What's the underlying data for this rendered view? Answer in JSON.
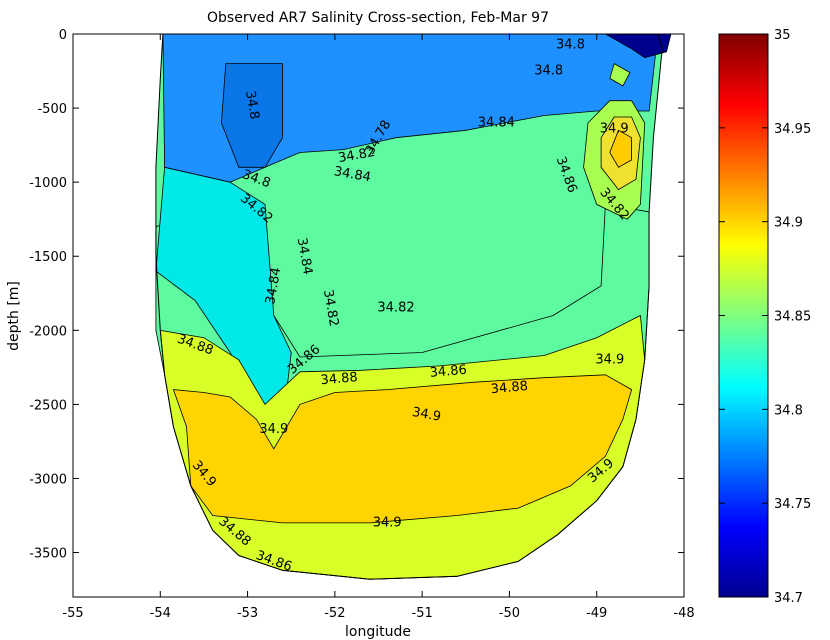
{
  "chart_data": {
    "type": "heatmap",
    "title": "Observed AR7 Salinity Cross-section, Feb-Mar 97",
    "xlabel": "longitude",
    "ylabel": "depth [m]",
    "xlim": [
      -55,
      -48
    ],
    "ylim": [
      -3800,
      0
    ],
    "x_ticks": [
      "-55",
      "-54",
      "-53",
      "-52",
      "-51",
      "-50",
      "-49",
      "-48"
    ],
    "x_tick_values": [
      -55,
      -54,
      -53,
      -52,
      -51,
      -50,
      -49,
      -48
    ],
    "y_ticks": [
      "0",
      "-500",
      "-1000",
      "-1500",
      "-2000",
      "-2500",
      "-3000",
      "-3500"
    ],
    "y_tick_values": [
      0,
      -500,
      -1000,
      -1500,
      -2000,
      -2500,
      -3000,
      -3500
    ],
    "colorbar": {
      "range": [
        34.7,
        35
      ],
      "ticks": [
        "35",
        "34.95",
        "34.9",
        "34.85",
        "34.8",
        "34.75",
        "34.7"
      ],
      "tick_values": [
        35,
        34.95,
        34.9,
        34.85,
        34.8,
        34.75,
        34.7
      ],
      "colormap": "jet"
    },
    "grid": false,
    "section_outline": [
      [
        -53.97,
        0
      ],
      [
        -54.0,
        -300
      ],
      [
        -54.05,
        -900
      ],
      [
        -54.05,
        -1500
      ],
      [
        -54.0,
        -2000
      ],
      [
        -53.95,
        -2300
      ],
      [
        -53.85,
        -2650
      ],
      [
        -53.65,
        -3050
      ],
      [
        -53.4,
        -3350
      ],
      [
        -53.1,
        -3520
      ],
      [
        -52.6,
        -3620
      ],
      [
        -51.6,
        -3680
      ],
      [
        -50.6,
        -3660
      ],
      [
        -49.9,
        -3560
      ],
      [
        -49.45,
        -3380
      ],
      [
        -49.0,
        -3150
      ],
      [
        -48.7,
        -2920
      ],
      [
        -48.55,
        -2600
      ],
      [
        -48.45,
        -2200
      ],
      [
        -48.4,
        -1700
      ],
      [
        -48.4,
        -1200
      ],
      [
        -48.35,
        -700
      ],
      [
        -48.25,
        -100
      ],
      [
        -48.3,
        0
      ]
    ],
    "regions": [
      {
        "level": 34.8,
        "color": "#1e90ff",
        "poly": [
          [
            -53.97,
            0
          ],
          [
            -53.95,
            -900
          ],
          [
            -53.2,
            -1000
          ],
          [
            -52.8,
            -900
          ],
          [
            -52.4,
            -800
          ],
          [
            -51.9,
            -780
          ],
          [
            -51.3,
            -700
          ],
          [
            -50.5,
            -650
          ],
          [
            -49.6,
            -550
          ],
          [
            -49.0,
            -520
          ],
          [
            -48.4,
            -520
          ],
          [
            -48.3,
            0
          ]
        ]
      },
      {
        "level": 34.78,
        "color": "#0a76e8",
        "poly": [
          [
            -53.25,
            -200
          ],
          [
            -53.3,
            -600
          ],
          [
            -53.1,
            -900
          ],
          [
            -52.8,
            -900
          ],
          [
            -52.6,
            -700
          ],
          [
            -52.6,
            -200
          ]
        ]
      },
      {
        "level": 34.86,
        "color": "#5dfaa0",
        "poly": [
          [
            -54.05,
            -1300
          ],
          [
            -54.05,
            -2000
          ],
          [
            -53.95,
            -2300
          ],
          [
            -53.85,
            -2650
          ],
          [
            -53.65,
            -3050
          ],
          [
            -53.4,
            -3350
          ],
          [
            -53.1,
            -3520
          ],
          [
            -52.6,
            -3620
          ],
          [
            -51.6,
            -3680
          ],
          [
            -50.6,
            -3660
          ],
          [
            -49.9,
            -3560
          ],
          [
            -49.45,
            -3380
          ],
          [
            -49.0,
            -3150
          ],
          [
            -48.7,
            -2920
          ],
          [
            -48.55,
            -2600
          ],
          [
            -48.45,
            -2200
          ],
          [
            -48.4,
            -1700
          ],
          [
            -48.4,
            -1200
          ],
          [
            -48.9,
            -1150
          ],
          [
            -48.95,
            -1700
          ],
          [
            -49.5,
            -1900
          ],
          [
            -51.0,
            -2150
          ],
          [
            -52.4,
            -2180
          ],
          [
            -52.7,
            -1900
          ],
          [
            -52.85,
            -1400
          ],
          [
            -53.4,
            -1200
          ]
        ]
      },
      {
        "level": 34.84,
        "color": "#00e8e8",
        "poly": [
          [
            -53.95,
            -900
          ],
          [
            -53.2,
            -1000
          ],
          [
            -52.8,
            -1150
          ],
          [
            -52.7,
            -1900
          ],
          [
            -52.5,
            -2150
          ],
          [
            -52.6,
            -2650
          ],
          [
            -52.9,
            -2500
          ],
          [
            -53.2,
            -2150
          ],
          [
            -53.6,
            -1800
          ],
          [
            -54.05,
            -1600
          ]
        ]
      },
      {
        "level": 34.88,
        "color": "#d8ff28",
        "poly": [
          [
            -54.0,
            -2000
          ],
          [
            -53.95,
            -2300
          ],
          [
            -53.85,
            -2650
          ],
          [
            -53.65,
            -3050
          ],
          [
            -53.4,
            -3350
          ],
          [
            -53.1,
            -3520
          ],
          [
            -52.6,
            -3620
          ],
          [
            -51.6,
            -3680
          ],
          [
            -50.6,
            -3660
          ],
          [
            -49.9,
            -3560
          ],
          [
            -49.45,
            -3380
          ],
          [
            -49.0,
            -3150
          ],
          [
            -48.7,
            -2920
          ],
          [
            -48.55,
            -2600
          ],
          [
            -48.45,
            -2200
          ],
          [
            -48.5,
            -1900
          ],
          [
            -49.0,
            -2050
          ],
          [
            -49.6,
            -2170
          ],
          [
            -50.8,
            -2240
          ],
          [
            -51.7,
            -2270
          ],
          [
            -52.4,
            -2280
          ],
          [
            -52.8,
            -2500
          ],
          [
            -53.1,
            -2200
          ],
          [
            -53.5,
            -2050
          ]
        ]
      },
      {
        "level": 34.9,
        "color": "#ffd400",
        "poly": [
          [
            -53.85,
            -2400
          ],
          [
            -53.7,
            -2650
          ],
          [
            -53.65,
            -3050
          ],
          [
            -53.4,
            -3250
          ],
          [
            -52.6,
            -3300
          ],
          [
            -51.6,
            -3300
          ],
          [
            -50.6,
            -3250
          ],
          [
            -49.9,
            -3200
          ],
          [
            -49.3,
            -3050
          ],
          [
            -48.9,
            -2850
          ],
          [
            -48.7,
            -2600
          ],
          [
            -48.6,
            -2400
          ],
          [
            -48.9,
            -2300
          ],
          [
            -49.6,
            -2320
          ],
          [
            -50.4,
            -2350
          ],
          [
            -51.4,
            -2400
          ],
          [
            -52.0,
            -2420
          ],
          [
            -52.4,
            -2500
          ],
          [
            -52.7,
            -2800
          ],
          [
            -52.9,
            -2600
          ],
          [
            -53.2,
            -2450
          ],
          [
            -53.5,
            -2420
          ]
        ]
      },
      {
        "level": 34.86,
        "color": "#a8ff50",
        "poly": [
          [
            -48.85,
            -450
          ],
          [
            -49.1,
            -600
          ],
          [
            -49.15,
            -900
          ],
          [
            -49.0,
            -1150
          ],
          [
            -48.65,
            -1250
          ],
          [
            -48.5,
            -1150
          ],
          [
            -48.45,
            -600
          ],
          [
            -48.6,
            -450
          ]
        ]
      },
      {
        "level": 34.9,
        "color": "#f0e030",
        "poly": [
          [
            -48.8,
            -560
          ],
          [
            -48.95,
            -700
          ],
          [
            -48.95,
            -900
          ],
          [
            -48.75,
            -1050
          ],
          [
            -48.55,
            -980
          ],
          [
            -48.5,
            -700
          ],
          [
            -48.6,
            -560
          ]
        ]
      },
      {
        "level": 34.92,
        "color": "#ffcc00",
        "poly": [
          [
            -48.75,
            -650
          ],
          [
            -48.85,
            -800
          ],
          [
            -48.75,
            -900
          ],
          [
            -48.6,
            -850
          ],
          [
            -48.6,
            -700
          ]
        ]
      },
      {
        "level": 34.7,
        "color": "#00008f",
        "poly": [
          [
            -48.9,
            0
          ],
          [
            -48.6,
            -100
          ],
          [
            -48.45,
            -160
          ],
          [
            -48.2,
            -120
          ],
          [
            -48.15,
            0
          ]
        ]
      },
      {
        "level": 34.86,
        "color": "#a8ff50",
        "poly": [
          [
            -48.8,
            -200
          ],
          [
            -48.85,
            -300
          ],
          [
            -48.7,
            -350
          ],
          [
            -48.62,
            -260
          ]
        ]
      }
    ],
    "contour_labels": [
      {
        "text": "34.8",
        "x": -49.3,
        "y": -75,
        "rot": 0
      },
      {
        "text": "34.8",
        "x": -49.55,
        "y": -250,
        "rot": 0
      },
      {
        "text": "34.8",
        "x": -52.95,
        "y": -480,
        "rot": 80
      },
      {
        "text": "34.78",
        "x": -51.5,
        "y": -700,
        "rot": -60
      },
      {
        "text": "34.84",
        "x": -50.15,
        "y": -600,
        "rot": 0
      },
      {
        "text": "34.9",
        "x": -48.8,
        "y": -640,
        "rot": 0
      },
      {
        "text": "34.82",
        "x": -51.75,
        "y": -820,
        "rot": -10
      },
      {
        "text": "34.84",
        "x": -51.8,
        "y": -950,
        "rot": 10
      },
      {
        "text": "34.8",
        "x": -52.9,
        "y": -980,
        "rot": 20
      },
      {
        "text": "34.82",
        "x": -52.9,
        "y": -1180,
        "rot": 40
      },
      {
        "text": "34.86",
        "x": -49.35,
        "y": -950,
        "rot": 70
      },
      {
        "text": "34.82",
        "x": -48.8,
        "y": -1150,
        "rot": 50
      },
      {
        "text": "34.84",
        "x": -52.35,
        "y": -1500,
        "rot": 80
      },
      {
        "text": "34.84",
        "x": -52.7,
        "y": -1700,
        "rot": -80
      },
      {
        "text": "34.82",
        "x": -52.05,
        "y": -1850,
        "rot": 80
      },
      {
        "text": "34.82",
        "x": -51.3,
        "y": -1850,
        "rot": 0
      },
      {
        "text": "34.86",
        "x": -52.35,
        "y": -2200,
        "rot": -40
      },
      {
        "text": "34.88",
        "x": -53.6,
        "y": -2100,
        "rot": 20
      },
      {
        "text": "34.88",
        "x": -51.95,
        "y": -2330,
        "rot": -5
      },
      {
        "text": "34.86",
        "x": -50.7,
        "y": -2280,
        "rot": -5
      },
      {
        "text": "34.88",
        "x": -50.0,
        "y": -2390,
        "rot": -5
      },
      {
        "text": "34.9",
        "x": -48.85,
        "y": -2200,
        "rot": 0
      },
      {
        "text": "34.9",
        "x": -50.95,
        "y": -2570,
        "rot": 10
      },
      {
        "text": "34.9",
        "x": -52.7,
        "y": -2670,
        "rot": 0
      },
      {
        "text": "34.9",
        "x": -53.5,
        "y": -2970,
        "rot": 50
      },
      {
        "text": "34.9",
        "x": -51.4,
        "y": -3300,
        "rot": 0
      },
      {
        "text": "34.9",
        "x": -48.95,
        "y": -2950,
        "rot": -40
      },
      {
        "text": "34.88",
        "x": -53.15,
        "y": -3360,
        "rot": 40
      },
      {
        "text": "34.86",
        "x": -52.7,
        "y": -3560,
        "rot": 20
      }
    ]
  }
}
